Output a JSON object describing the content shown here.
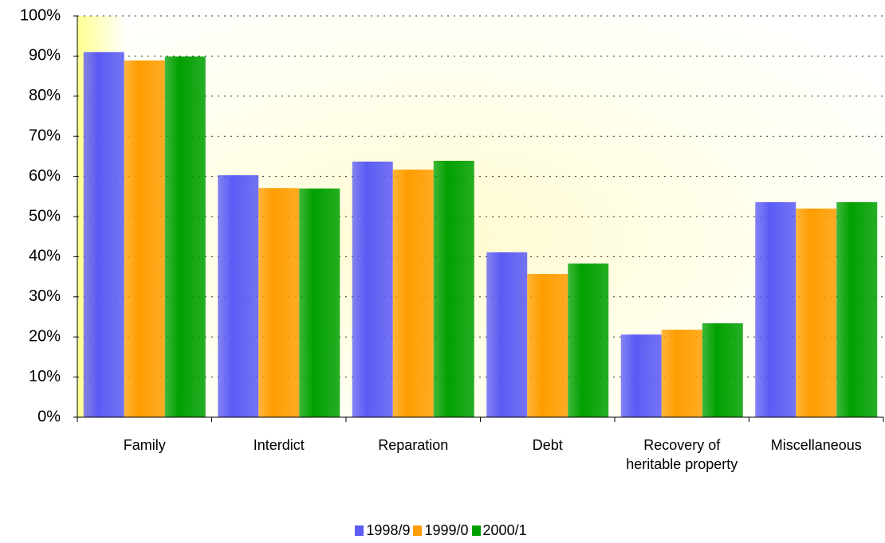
{
  "chart_data": {
    "type": "bar",
    "categories": [
      "Family",
      "Interdict",
      "Reparation",
      "Debt",
      "Recovery of heritable property",
      "Miscellaneous"
    ],
    "series": [
      {
        "name": "1998/9",
        "color": "#5b5bf5",
        "values": [
          91,
          60.3,
          63.7,
          41.1,
          20.6,
          53.6
        ]
      },
      {
        "name": "1999/0",
        "color": "#ff9d00",
        "values": [
          88.9,
          57.1,
          61.7,
          35.7,
          21.8,
          52
        ]
      },
      {
        "name": "2000/1",
        "color": "#00a000",
        "values": [
          89.9,
          57,
          63.9,
          38.3,
          23.4,
          53.6
        ]
      }
    ],
    "ylim": [
      0,
      100
    ],
    "yticks": [
      {
        "value": 0,
        "label": "0%"
      },
      {
        "value": 10,
        "label": "10%"
      },
      {
        "value": 20,
        "label": "20%"
      },
      {
        "value": 30,
        "label": "30%"
      },
      {
        "value": 40,
        "label": "40%"
      },
      {
        "value": 50,
        "label": "50%"
      },
      {
        "value": 60,
        "label": "60%"
      },
      {
        "value": 70,
        "label": "70%"
      },
      {
        "value": 80,
        "label": "80%"
      },
      {
        "value": 90,
        "label": "90%"
      },
      {
        "value": 100,
        "label": "100%"
      }
    ],
    "grid": true
  }
}
